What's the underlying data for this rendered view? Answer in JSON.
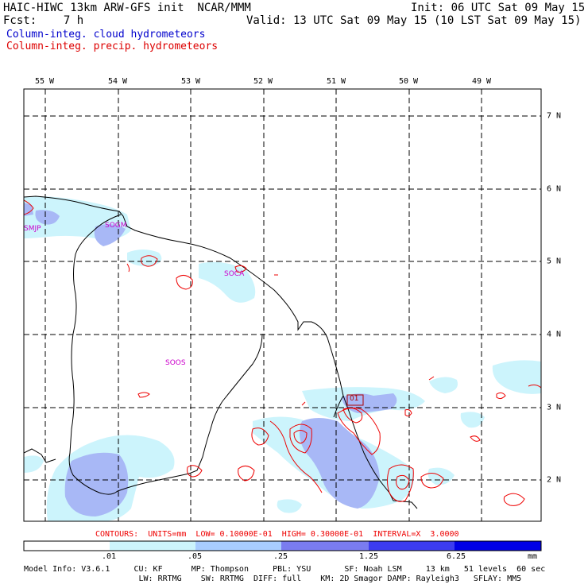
{
  "header": {
    "title_left": "HAIC-HIWC 13km ARW-GFS init  NCAR/MMM",
    "init_right": "Init: 06 UTC Sat 09 May 15",
    "fcst": "Fcst:    7 h",
    "valid": "Valid: 13 UTC Sat 09 May 15 (10 LST Sat 09 May 15)",
    "legend_cloud": "Column-integ. cloud hydrometeors",
    "legend_precip": "Column-integ. precip. hydrometeors",
    "legend_cloud_color": "#0000cc",
    "legend_precip_color": "#dd0000"
  },
  "map": {
    "lon_labels": [
      "55 W",
      "54 W",
      "53 W",
      "52 W",
      "51 W",
      "50 W",
      "49 W"
    ],
    "lat_labels": [
      "7 N",
      "6 N",
      "5 N",
      "4 N",
      "3 N",
      "2 N"
    ],
    "stations": [
      "SMJP",
      "SOGM",
      "SOCA",
      "SOOS",
      "01"
    ],
    "contour_color": "#ee0000",
    "coastline_color": "#000000",
    "grid_style": "dashed"
  },
  "contours_note": "CONTOURS:  UNITS=mm  LOW= 0.10000E-01  HIGH= 0.30000E-01  INTERVAL=X  3.0000",
  "colorbar": {
    "ticks": [
      ".01",
      ".05",
      ".25",
      "1.25",
      "6.25",
      "mm"
    ],
    "colors": [
      "#ffffff",
      "#ccf4fc",
      "#a8ccff",
      "#7a7cf0",
      "#3c3cf0",
      "#0000e6"
    ]
  },
  "model_info": {
    "line1": "Model Info: V3.6.1     CU: KF      MP: Thompson     PBL: YSU       SF: Noah LSM     13 km   51 levels  60 sec",
    "line2": "                        LW: RRTMG    SW: RRTMG  DIFF: full    KM: 2D Smagor DAMP: Rayleigh3   SFLAY: MM5"
  }
}
